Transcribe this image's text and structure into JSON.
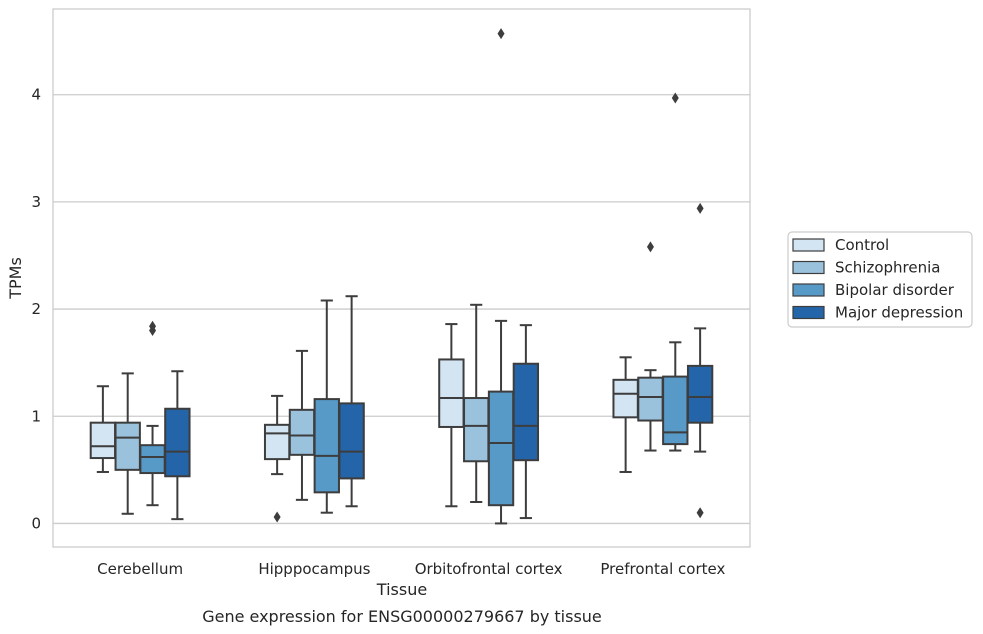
{
  "chart_data": {
    "type": "boxplot",
    "xlabel": "Tissue",
    "ylabel": "TPMs",
    "caption": "Gene expression for ENSG00000279667 by tissue",
    "categories": [
      "Cerebellum",
      "Hipppocampus",
      "Orbitofrontal cortex",
      "Prefrontal cortex"
    ],
    "ylim": [
      -0.22,
      4.8
    ],
    "yticks": [
      0,
      1,
      2,
      3,
      4
    ],
    "grid": "horizontal",
    "legend_position": "right",
    "series": [
      {
        "name": "Control",
        "color": "#d3e4f3",
        "boxes": [
          {
            "whisker_low": 0.48,
            "q1": 0.61,
            "median": 0.72,
            "q3": 0.94,
            "whisker_high": 1.28,
            "outliers": []
          },
          {
            "whisker_low": 0.46,
            "q1": 0.6,
            "median": 0.84,
            "q3": 0.92,
            "whisker_high": 1.19,
            "outliers": [
              0.06
            ]
          },
          {
            "whisker_low": 0.16,
            "q1": 0.9,
            "median": 1.17,
            "q3": 1.53,
            "whisker_high": 1.86,
            "outliers": []
          },
          {
            "whisker_low": 0.48,
            "q1": 0.99,
            "median": 1.21,
            "q3": 1.34,
            "whisker_high": 1.55,
            "outliers": []
          }
        ]
      },
      {
        "name": "Schizophrenia",
        "color": "#9ac2dd",
        "boxes": [
          {
            "whisker_low": 0.09,
            "q1": 0.5,
            "median": 0.8,
            "q3": 0.94,
            "whisker_high": 1.4,
            "outliers": []
          },
          {
            "whisker_low": 0.22,
            "q1": 0.64,
            "median": 0.82,
            "q3": 1.06,
            "whisker_high": 1.61,
            "outliers": []
          },
          {
            "whisker_low": 0.2,
            "q1": 0.58,
            "median": 0.91,
            "q3": 1.17,
            "whisker_high": 2.04,
            "outliers": []
          },
          {
            "whisker_low": 0.68,
            "q1": 0.96,
            "median": 1.18,
            "q3": 1.36,
            "whisker_high": 1.43,
            "outliers": [
              2.58
            ]
          }
        ]
      },
      {
        "name": "Bipolar disorder",
        "color": "#5799c7",
        "boxes": [
          {
            "whisker_low": 0.17,
            "q1": 0.47,
            "median": 0.62,
            "q3": 0.73,
            "whisker_high": 0.91,
            "outliers": [
              1.8,
              1.84
            ]
          },
          {
            "whisker_low": 0.1,
            "q1": 0.29,
            "median": 0.63,
            "q3": 1.16,
            "whisker_high": 2.08,
            "outliers": []
          },
          {
            "whisker_low": 0.0,
            "q1": 0.17,
            "median": 0.75,
            "q3": 1.23,
            "whisker_high": 1.89,
            "outliers": [
              4.57
            ]
          },
          {
            "whisker_low": 0.68,
            "q1": 0.74,
            "median": 0.85,
            "q3": 1.37,
            "whisker_high": 1.69,
            "outliers": [
              3.97
            ]
          }
        ]
      },
      {
        "name": "Major depression",
        "color": "#2464a8",
        "boxes": [
          {
            "whisker_low": 0.04,
            "q1": 0.44,
            "median": 0.67,
            "q3": 1.07,
            "whisker_high": 1.42,
            "outliers": []
          },
          {
            "whisker_low": 0.16,
            "q1": 0.42,
            "median": 0.67,
            "q3": 1.12,
            "whisker_high": 2.12,
            "outliers": []
          },
          {
            "whisker_low": 0.05,
            "q1": 0.59,
            "median": 0.91,
            "q3": 1.49,
            "whisker_high": 1.85,
            "outliers": []
          },
          {
            "whisker_low": 0.67,
            "q1": 0.94,
            "median": 1.18,
            "q3": 1.47,
            "whisker_high": 1.82,
            "outliers": [
              2.94,
              0.1
            ]
          }
        ]
      }
    ]
  }
}
